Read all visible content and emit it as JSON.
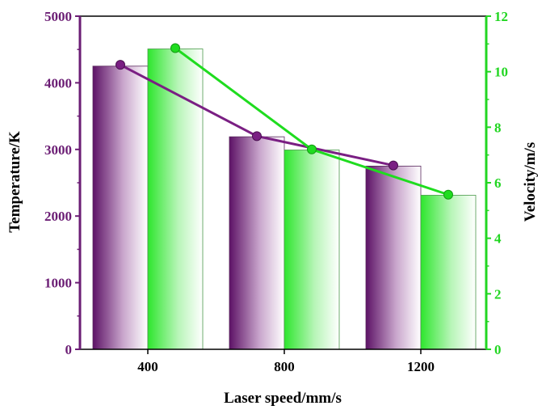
{
  "chart_data": {
    "type": "bar",
    "xlabel": "Laser speed/mm/s",
    "ylabel_left": "Temperature/K",
    "ylabel_right": "Velocity/m/s",
    "categories": [
      "400",
      "800",
      "1200"
    ],
    "y_left": {
      "range": [
        0,
        5000
      ],
      "ticks": [
        "0",
        "1000",
        "2000",
        "3000",
        "4000",
        "5000"
      ]
    },
    "y_right": {
      "range": [
        0,
        12
      ],
      "ticks": [
        "0",
        "2",
        "4",
        "6",
        "8",
        "10",
        "12"
      ]
    },
    "series": [
      {
        "axis": "left",
        "kind": "bar",
        "values": [
          4250,
          3190,
          2750
        ],
        "color": "#6a1b6e"
      },
      {
        "axis": "right",
        "kind": "bar",
        "values": [
          10.82,
          7.18,
          5.55
        ],
        "color": "#22e322"
      },
      {
        "axis": "left",
        "kind": "line",
        "values": [
          4270,
          3200,
          2760
        ],
        "color": "#7a1f83"
      },
      {
        "axis": "right",
        "kind": "line",
        "values": [
          10.85,
          7.2,
          5.57
        ],
        "color": "#1fdc1f"
      }
    ],
    "colors": {
      "left_axis": "#6b1d74",
      "right_axis": "#22d622"
    },
    "grid": false
  }
}
